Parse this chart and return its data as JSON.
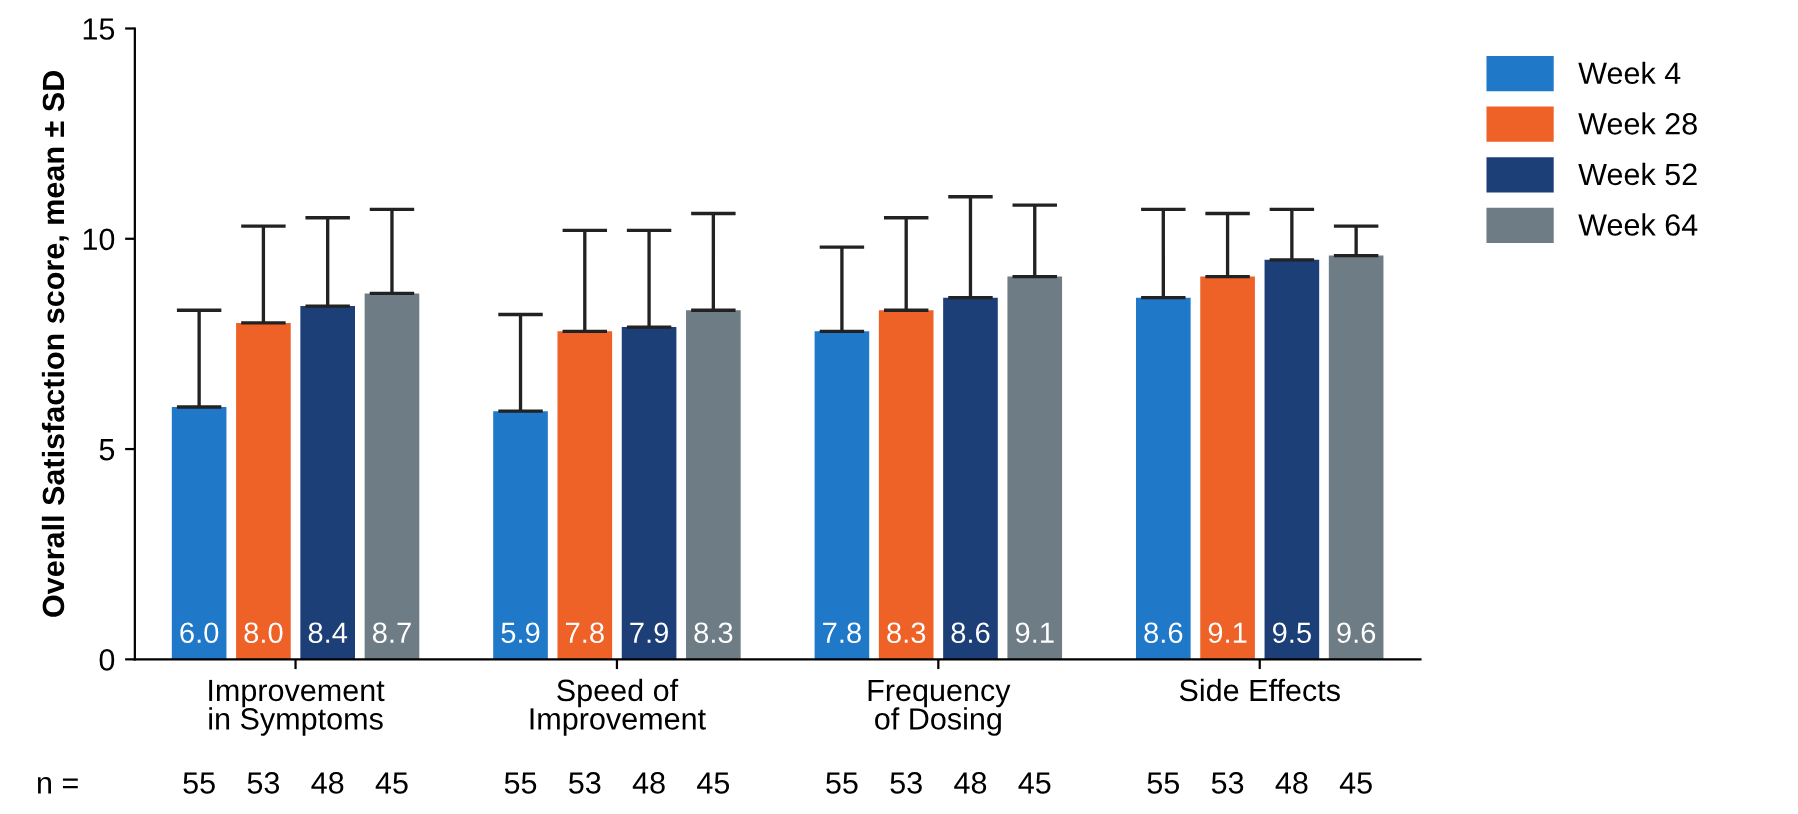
{
  "chart_data": {
    "type": "bar",
    "ylabel": "Overall Satisfaction score, mean ± SD",
    "categories": [
      "Improvement\nin Symptoms",
      "Speed of\nImprovement",
      "Frequency\nof Dosing",
      "Side Effects"
    ],
    "series": [
      {
        "name": "Week 4",
        "color": "#1f78c8",
        "values": [
          6.0,
          5.9,
          7.8,
          8.6
        ],
        "value_labels": [
          "6.0",
          "5.9",
          "7.8",
          "8.6"
        ],
        "errors": [
          [
            6.0,
            8.3
          ],
          [
            5.9,
            8.2
          ],
          [
            7.8,
            9.8
          ],
          [
            8.6,
            10.7
          ]
        ]
      },
      {
        "name": "Week 28",
        "color": "#ee6127",
        "values": [
          8.0,
          7.8,
          8.3,
          9.1
        ],
        "value_labels": [
          "8.0",
          "7.8",
          "8.3",
          "9.1"
        ],
        "errors": [
          [
            8.0,
            10.3
          ],
          [
            7.8,
            10.2
          ],
          [
            8.3,
            10.5
          ],
          [
            9.1,
            10.6
          ]
        ]
      },
      {
        "name": "Week 52",
        "color": "#1d3f78",
        "values": [
          8.4,
          7.9,
          8.6,
          9.5
        ],
        "value_labels": [
          "8.4",
          "7.9",
          "8.6",
          "9.5"
        ],
        "errors": [
          [
            8.4,
            10.5
          ],
          [
            7.9,
            10.2
          ],
          [
            8.6,
            11.0
          ],
          [
            9.5,
            10.7
          ]
        ]
      },
      {
        "name": "Week 64",
        "color": "#6e7c85",
        "values": [
          8.7,
          8.3,
          9.1,
          9.6
        ],
        "value_labels": [
          "8.7",
          "8.3",
          "9.1",
          "9.6"
        ],
        "errors": [
          [
            8.7,
            10.7
          ],
          [
            8.3,
            10.6
          ],
          [
            9.1,
            10.8
          ],
          [
            9.6,
            10.3
          ]
        ]
      }
    ],
    "ylim": [
      0,
      15
    ],
    "yticks": [
      0,
      5,
      10,
      15
    ],
    "legend": "top right",
    "annotations": [
      "n =",
      "55",
      "53",
      "48",
      "45",
      "55",
      "53",
      "48",
      "45",
      "55",
      "53",
      "48",
      "45",
      "55",
      "53",
      "48",
      "45"
    ]
  }
}
